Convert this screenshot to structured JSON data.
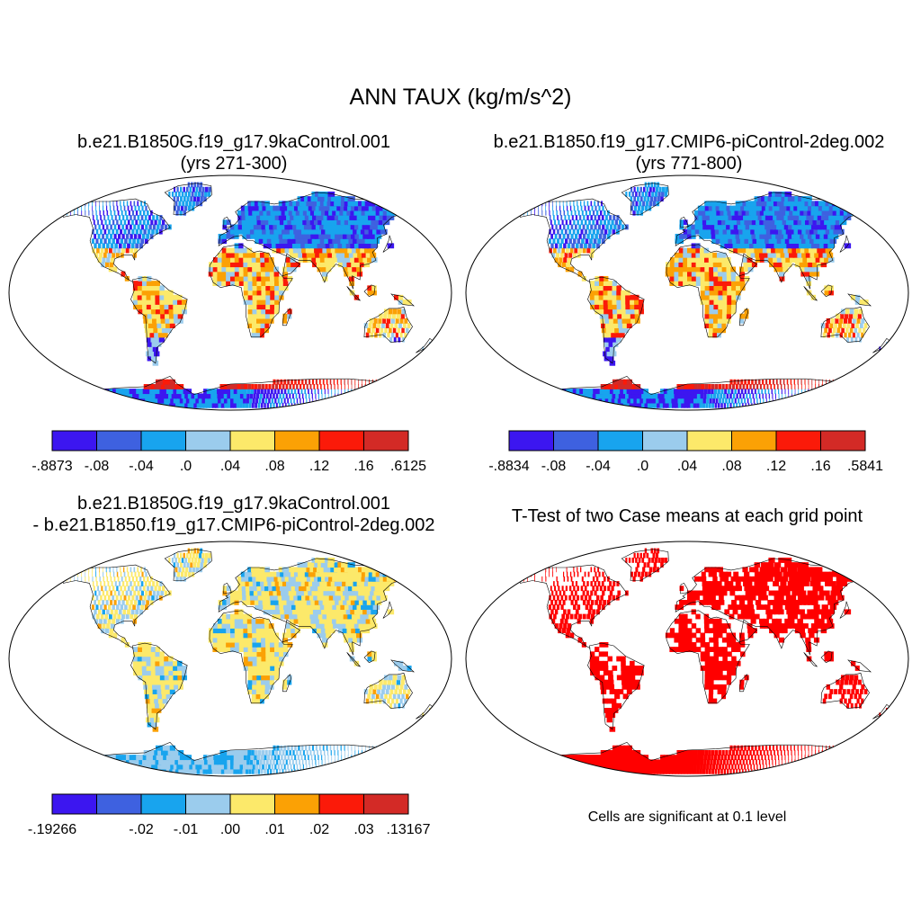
{
  "title": "ANN TAUX (kg/m/s^2)",
  "panels": [
    {
      "title_line1": "b.e21.B1850G.f19_g17.9kaControl.001",
      "title_line2": "(yrs 271-300)",
      "colorbar": {
        "colors": [
          "#3c16f0",
          "#3e61e0",
          "#18a4ee",
          "#9bcced",
          "#fce96a",
          "#fba105",
          "#fb1a09",
          "#d32a26"
        ],
        "labels": [
          "-.8873",
          "-.08",
          "-.04",
          ".0",
          ".04",
          ".08",
          ".12",
          ".16",
          ".6125"
        ]
      }
    },
    {
      "title_line1": "b.e21.B1850.f19_g17.CMIP6-piControl-2deg.002",
      "title_line2": "(yrs 771-800)",
      "colorbar": {
        "colors": [
          "#3c16f0",
          "#3e61e0",
          "#18a4ee",
          "#9bcced",
          "#fce96a",
          "#fba105",
          "#fb1a09",
          "#d32a26"
        ],
        "labels": [
          "-.8834",
          "-.08",
          "-.04",
          ".0",
          ".04",
          ".08",
          ".12",
          ".16",
          ".5841"
        ]
      }
    },
    {
      "title_line1": "b.e21.B1850G.f19_g17.9kaControl.001",
      "title_line2": "- b.e21.B1850.f19_g17.CMIP6-piControl-2deg.002",
      "colorbar": {
        "colors": [
          "#3c16f0",
          "#3e61e0",
          "#18a4ee",
          "#9bcced",
          "#fce96a",
          "#fba105",
          "#fb1a09",
          "#d32a26"
        ],
        "labels": [
          "-.19266",
          "",
          "-.02",
          "-.01",
          ".00",
          ".01",
          ".02",
          ".03",
          ".13167"
        ]
      }
    },
    {
      "title_line1": "T-Test of two Case means at each grid point",
      "note": "Cells are significant at 0.1 level",
      "fill_color": "#ff0000"
    }
  ]
}
